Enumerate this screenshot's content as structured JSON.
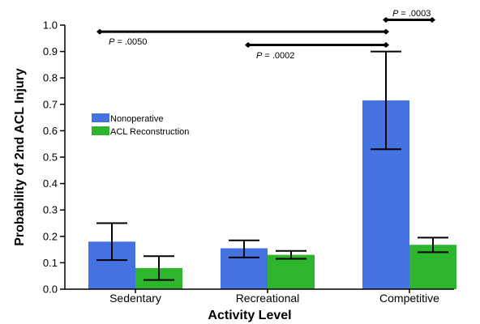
{
  "chart_data": {
    "type": "bar",
    "title": "",
    "xlabel": "Activity Level",
    "ylabel": "Probability of 2nd ACL Injury",
    "ylim": [
      0,
      1.0
    ],
    "yticks": [
      "0.0",
      "0.1",
      "0.2",
      "0.3",
      "0.4",
      "0.5",
      "0.6",
      "0.7",
      "0.8",
      "0.9",
      "1.0"
    ],
    "categories": [
      "Sedentary",
      "Recreational",
      "Competitive"
    ],
    "series": [
      {
        "name": "Nonoperative",
        "color": "#4472e0",
        "values": [
          0.18,
          0.155,
          0.715
        ],
        "error_low": [
          0.11,
          0.12,
          0.53
        ],
        "error_high": [
          0.25,
          0.185,
          0.9
        ]
      },
      {
        "name": "ACL Reconstruction",
        "color": "#2db52d",
        "values": [
          0.08,
          0.13,
          0.168
        ],
        "error_low": [
          0.035,
          0.115,
          0.14
        ],
        "error_high": [
          0.125,
          0.145,
          0.195
        ]
      }
    ],
    "legend_position": "middle-left",
    "comparisons": [
      {
        "label": "P = .0050",
        "from": "Sedentary",
        "to": "Competitive",
        "y": 0.975
      },
      {
        "label": "P = .0002",
        "from": "Recreational",
        "to": "Competitive",
        "y": 0.925
      },
      {
        "label": "P = .0003",
        "from": "Competitive",
        "to": "Competitive ACL Reconstruction",
        "y": 1.02
      }
    ]
  }
}
